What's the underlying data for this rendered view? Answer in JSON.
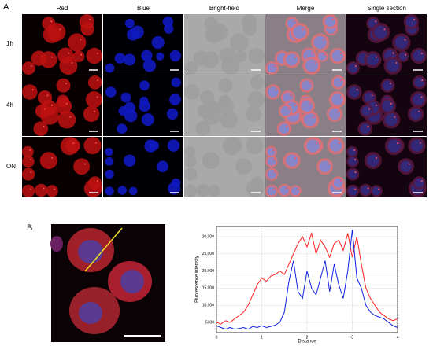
{
  "panels": {
    "a": {
      "label": "A",
      "columns": [
        "Red",
        "Blue",
        "Bright-field",
        "Merge",
        "Single section"
      ],
      "rows": [
        "1h",
        "4h",
        "ON"
      ]
    },
    "b": {
      "label": "B"
    }
  },
  "chart_data": {
    "type": "line",
    "xlabel": "Distance",
    "ylabel": "Fluorescence intensity",
    "x": [
      0,
      0.1,
      0.2,
      0.3,
      0.4,
      0.5,
      0.6,
      0.7,
      0.8,
      0.9,
      1.0,
      1.1,
      1.2,
      1.3,
      1.4,
      1.5,
      1.6,
      1.7,
      1.8,
      1.9,
      2.0,
      2.1,
      2.2,
      2.3,
      2.4,
      2.5,
      2.6,
      2.7,
      2.8,
      2.9,
      3.0,
      3.1,
      3.2,
      3.3,
      3.4,
      3.5,
      3.6,
      3.7,
      3.8,
      3.9,
      4.0
    ],
    "series": [
      {
        "name": "Red",
        "color": "#ff2020",
        "values": [
          5000,
          4500,
          5500,
          5000,
          6000,
          7000,
          8000,
          10000,
          13000,
          16000,
          18000,
          17000,
          18500,
          19000,
          20000,
          19000,
          22000,
          25000,
          28000,
          30000,
          27000,
          31000,
          25000,
          29000,
          27000,
          24000,
          28000,
          29000,
          26000,
          31000,
          24000,
          30000,
          22000,
          15000,
          12000,
          10000,
          8000,
          7000,
          6000,
          5500,
          6000
        ]
      },
      {
        "name": "Blue",
        "color": "#1020e0",
        "values": [
          4000,
          3500,
          3000,
          3500,
          3000,
          3200,
          3500,
          3000,
          3800,
          3500,
          4000,
          3500,
          3800,
          4200,
          5000,
          8000,
          17000,
          23000,
          14000,
          12000,
          20000,
          15000,
          13000,
          18000,
          23000,
          14000,
          22000,
          16000,
          12000,
          20000,
          32000,
          18000,
          15000,
          10000,
          8000,
          7000,
          6500,
          6000,
          5000,
          4000,
          3500
        ]
      }
    ],
    "xlim": [
      0,
      4
    ],
    "ylim": [
      2000,
      33000
    ],
    "xticks": [
      0,
      1,
      2,
      3,
      4
    ],
    "yticks": [
      5000,
      {
        "value": 10000,
        "label": "10,000"
      },
      {
        "value": 15000,
        "label": "15,000"
      },
      {
        "value": 20000,
        "label": "20,000"
      },
      {
        "value": 25000,
        "label": "25,000"
      },
      {
        "value": 30000,
        "label": "30,000"
      }
    ],
    "grid": true
  }
}
